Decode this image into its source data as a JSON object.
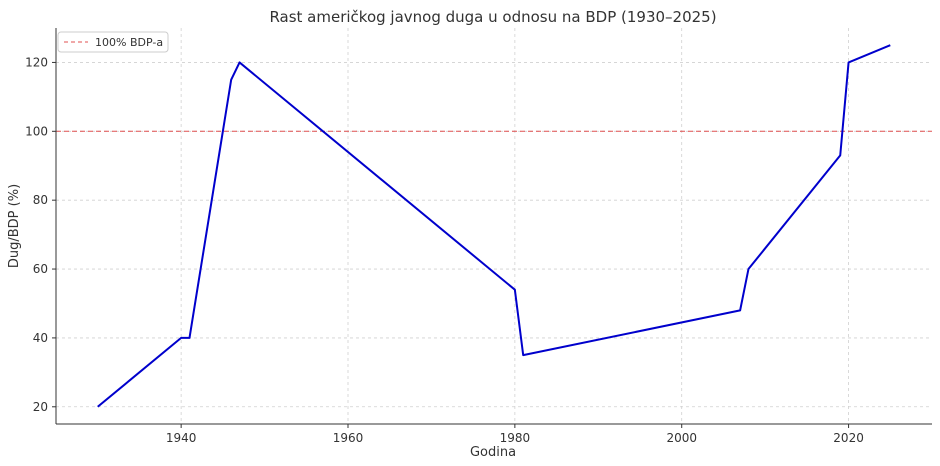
{
  "chart_data": {
    "type": "line",
    "title": "Rast američkog javnog duga u odnosu na BDP (1930–2025)",
    "xlabel": "Godina",
    "ylabel": "Dug/BDP (%)",
    "xlim": [
      1925,
      2030
    ],
    "ylim": [
      15,
      130
    ],
    "xticks": [
      1940,
      1960,
      1980,
      2000,
      2020
    ],
    "yticks": [
      20,
      40,
      60,
      80,
      100,
      120
    ],
    "grid": true,
    "legend_position": "top-left",
    "series": [
      {
        "x": [
          1930,
          1940,
          1941,
          1945,
          1946,
          1947,
          1980,
          1981,
          2007,
          2008,
          2019,
          2020,
          2025
        ],
        "y": [
          20,
          40,
          40,
          100,
          115,
          120,
          54,
          35,
          48,
          60,
          93,
          120,
          125
        ],
        "color": "#0000cc"
      }
    ],
    "reference_lines": [
      {
        "y": 100,
        "label": "100% BDP-a",
        "color": "#e05050",
        "style": "dashed"
      }
    ]
  }
}
